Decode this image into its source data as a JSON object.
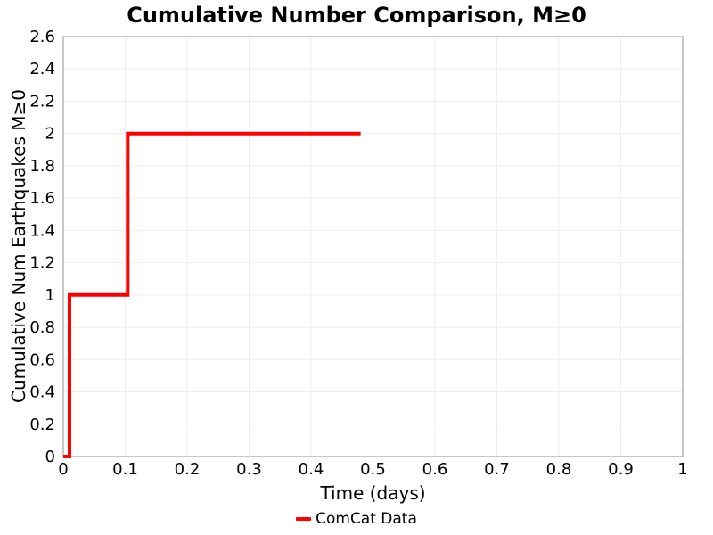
{
  "colors": {
    "background": "#ffffff",
    "text": "#000000",
    "grid": "#ededed",
    "spine": "#a9a9a9",
    "series_red": "#ff0000"
  },
  "chart_data": {
    "type": "line",
    "subtype": "step",
    "title": "Cumulative Number Comparison, M≥0",
    "xlabel": "Time (days)",
    "ylabel": "Cumulative Num Earthquakes M≥0",
    "xlim": [
      0,
      1
    ],
    "ylim": [
      0,
      2.6
    ],
    "grid": true,
    "legend_position": "bottom-center",
    "xticks": {
      "values": [
        0,
        0.1,
        0.2,
        0.3,
        0.4,
        0.5,
        0.6,
        0.7,
        0.8,
        0.9,
        1
      ],
      "labels": [
        "0",
        "0.1",
        "0.2",
        "0.3",
        "0.4",
        "0.5",
        "0.6",
        "0.7",
        "0.8",
        "0.9",
        "1"
      ]
    },
    "yticks": {
      "values": [
        0,
        0.2,
        0.4,
        0.6,
        0.8,
        1,
        1.2,
        1.4,
        1.6,
        1.8,
        2,
        2.2,
        2.4,
        2.6
      ],
      "labels": [
        "0",
        "0.2",
        "0.4",
        "0.6",
        "0.8",
        "1",
        "1.2",
        "1.4",
        "1.6",
        "1.8",
        "2",
        "2.2",
        "2.4",
        "2.6"
      ]
    },
    "series": [
      {
        "name": "ComCat Data",
        "color": "#ff0000",
        "line_width": 4,
        "points": [
          [
            0,
            0
          ],
          [
            0.01,
            0
          ],
          [
            0.01,
            1
          ],
          [
            0.104,
            1
          ],
          [
            0.104,
            2
          ],
          [
            0.48,
            2
          ]
        ]
      }
    ]
  }
}
